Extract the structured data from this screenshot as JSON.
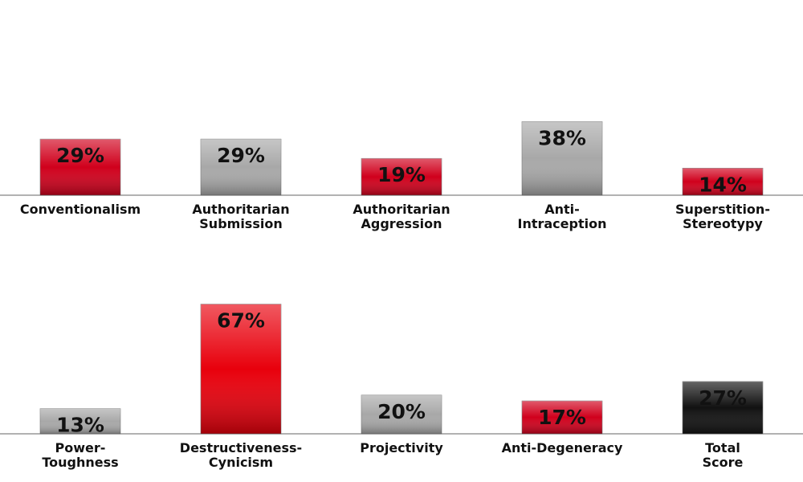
{
  "chart_data": [
    {
      "type": "bar",
      "categories": [
        [
          "Conventionalism"
        ],
        [
          "Authoritarian",
          "Submission"
        ],
        [
          "Authoritarian",
          "Aggression"
        ],
        [
          "Anti-",
          "Intraception"
        ],
        [
          "Superstition-",
          "Stereotypy"
        ]
      ],
      "values": [
        29,
        29,
        19,
        38,
        14
      ],
      "value_labels": [
        "29%",
        "29%",
        "19%",
        "38%",
        "14%"
      ],
      "colors": [
        "#d0001c",
        "#a8a8a8",
        "#d0001c",
        "#a8a8a8",
        "#d0001c"
      ]
    },
    {
      "type": "bar",
      "categories": [
        [
          "Power-",
          "Toughness"
        ],
        [
          "Destructiveness-",
          "Cynicism"
        ],
        [
          "Projectivity"
        ],
        [
          "Anti-Degeneracy"
        ],
        [
          "Total",
          "Score"
        ]
      ],
      "values": [
        13,
        67,
        20,
        17,
        27
      ],
      "value_labels": [
        "13%",
        "67%",
        "20%",
        "17%",
        "27%"
      ],
      "colors": [
        "#a8a8a8",
        "#e8000c",
        "#a8a8a8",
        "#d0001c",
        "#111111"
      ]
    }
  ]
}
